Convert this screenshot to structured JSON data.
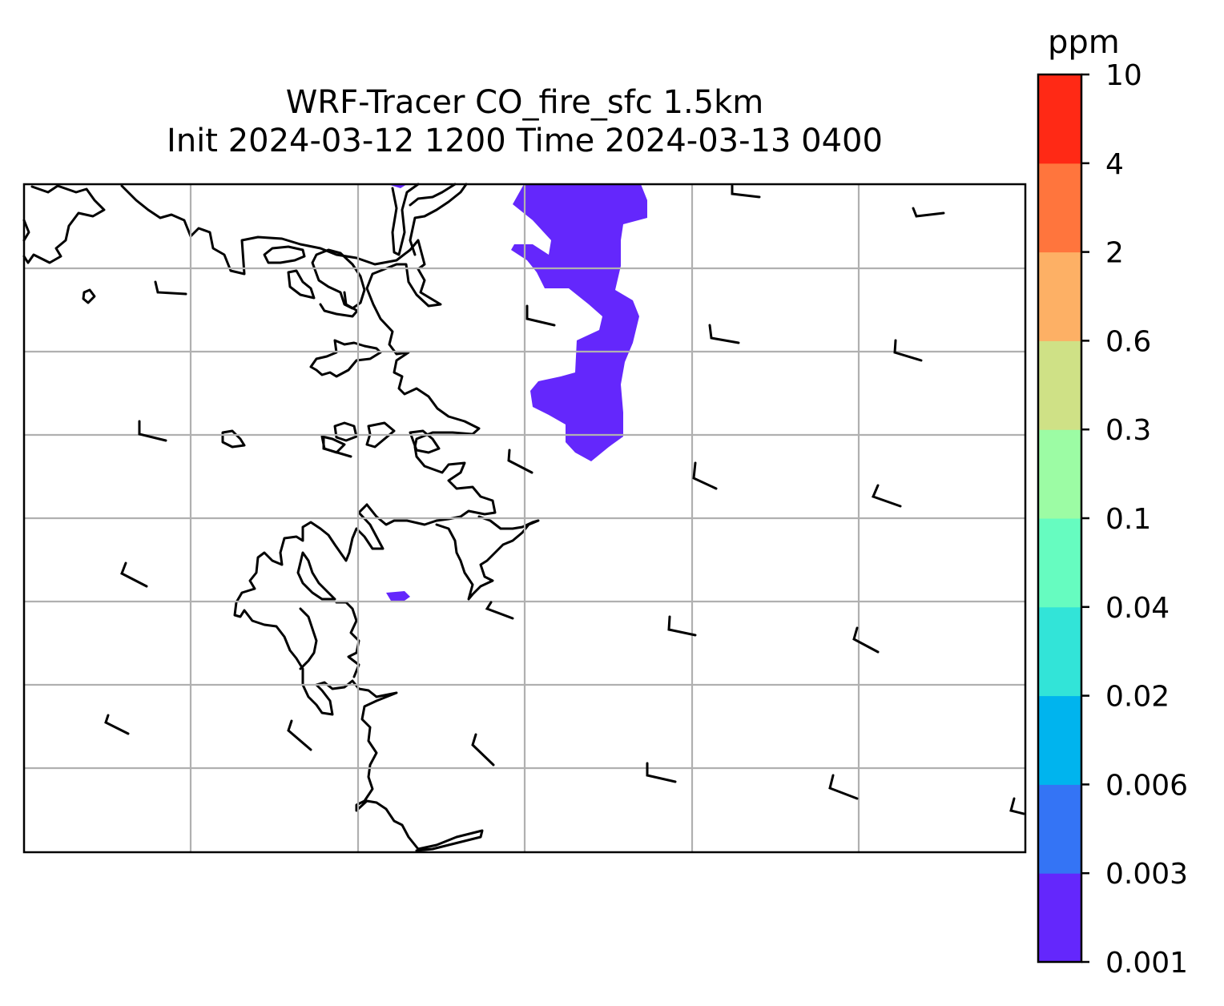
{
  "title": {
    "line1": "WRF-Tracer CO_fire_sfc 1.5km",
    "line2": "Init 2024-03-12 1200 Time 2024-03-13 0400"
  },
  "colorbar": {
    "label": "ppm",
    "levels": [
      "0.001",
      "0.003",
      "0.006",
      "0.02",
      "0.04",
      "0.1",
      "0.3",
      "0.6",
      "2",
      "4",
      "10"
    ],
    "colors": [
      "#6427fc",
      "#3474f5",
      "#00b4ee",
      "#32e4d8",
      "#66fcc0",
      "#9cfca4",
      "#cfe186",
      "#fdb065",
      "#ff753d",
      "#ff2915"
    ]
  },
  "map": {
    "gridlines": true,
    "plume_color": "#6427fc",
    "coastline_color": "#000000",
    "grid_color": "#b0b0b0",
    "features": [
      "coastline",
      "wind-barbs",
      "co-plume",
      "gridlines"
    ]
  }
}
